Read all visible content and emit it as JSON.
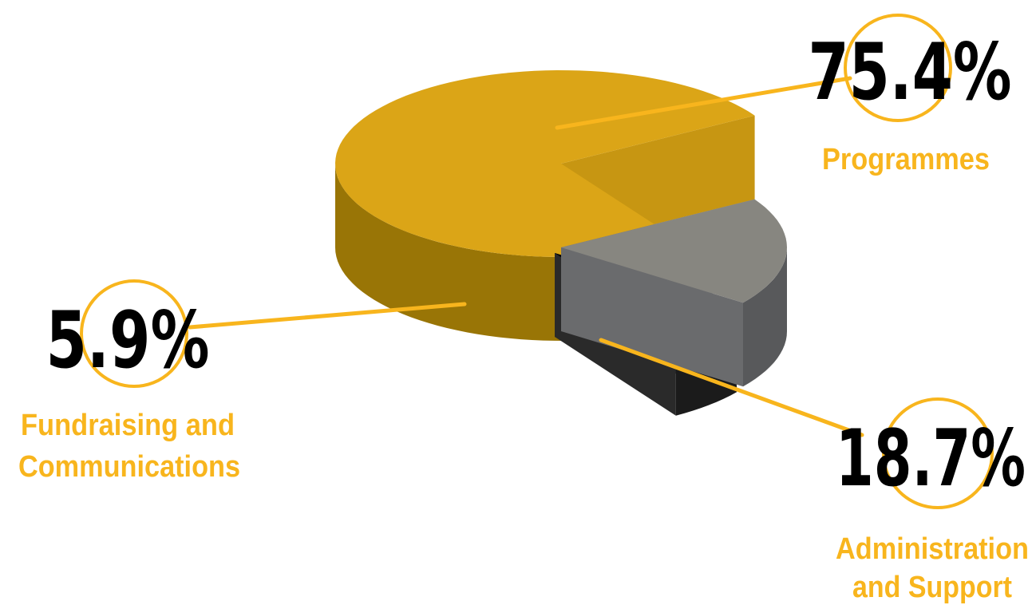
{
  "chart_data": {
    "type": "pie",
    "style": "3d-exploded",
    "slices": [
      {
        "label_lines": [
          "Programmes"
        ],
        "value": 75.4,
        "value_text": "75.4%",
        "top_color": "#DBA517",
        "side_color": "#997506",
        "side_light": "#C79612"
      },
      {
        "label_lines": [
          "Administration",
          "and Support"
        ],
        "value": 18.7,
        "value_text": "18.7%",
        "top_color": "#878680",
        "side_color": "#58595B",
        "side_light": "#6A6B6D"
      },
      {
        "label_lines": [
          "Fundraising and",
          "Communications"
        ],
        "value": 5.9,
        "value_text": "5.9%",
        "top_color": "#000000",
        "side_color": "#1B1B1B",
        "side_light": "#2A2A2A"
      }
    ],
    "accent_color": "#F8B51D"
  }
}
